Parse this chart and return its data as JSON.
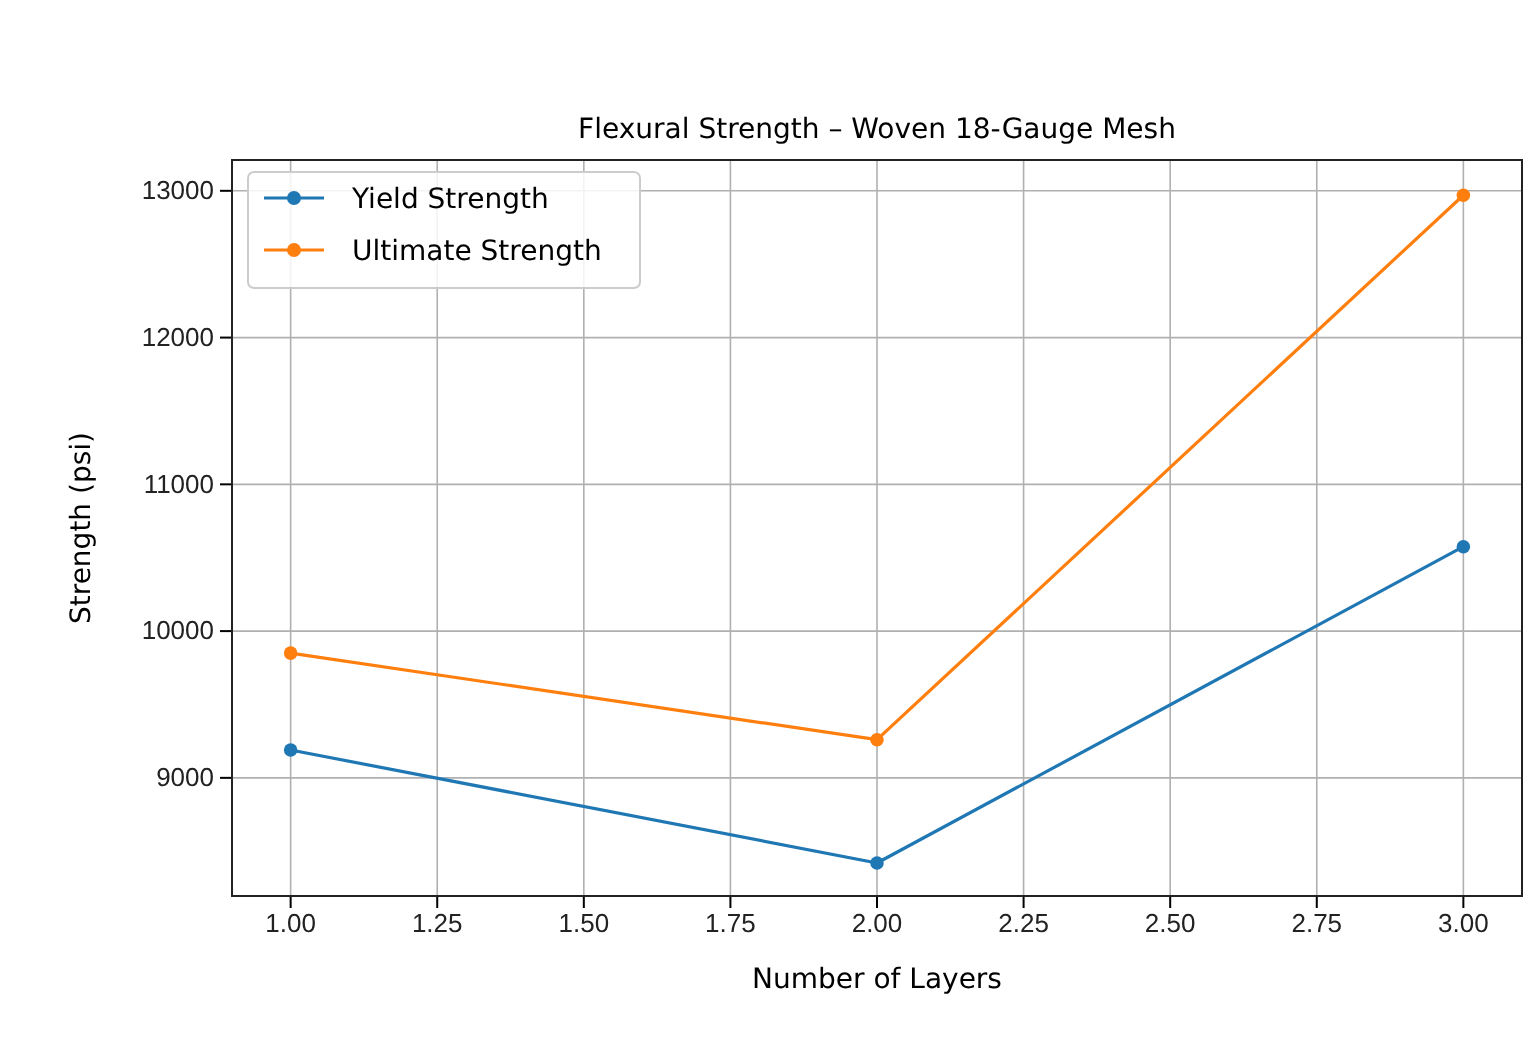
{
  "chart_data": {
    "type": "line",
    "title": "Flexural Strength – Woven 18-Gauge Mesh",
    "xlabel": "Number of Layers",
    "ylabel": "Strength (psi)",
    "x": [
      1,
      2,
      3
    ],
    "series": [
      {
        "name": "Yield Strength",
        "color": "#1f77b4",
        "values": [
          9190,
          8420,
          10575
        ]
      },
      {
        "name": "Ultimate Strength",
        "color": "#ff7f0e",
        "values": [
          9850,
          9260,
          12970
        ]
      }
    ],
    "xlim": [
      0.9,
      3.1
    ],
    "xticks": [
      {
        "value": 1,
        "label": "1.00"
      },
      {
        "value": 1.25,
        "label": "1.25"
      },
      {
        "value": 1.5,
        "label": "1.50"
      },
      {
        "value": 1.75,
        "label": "1.75"
      },
      {
        "value": 2,
        "label": "2.00"
      },
      {
        "value": 2.25,
        "label": "2.25"
      },
      {
        "value": 2.5,
        "label": "2.50"
      },
      {
        "value": 2.75,
        "label": "2.75"
      },
      {
        "value": 3,
        "label": "3.00"
      }
    ],
    "ylim": [
      8195,
      13210
    ],
    "yticks": [
      9000,
      10000,
      11000,
      12000,
      13000
    ],
    "grid": true,
    "legend": "top left",
    "marker": "circle",
    "line_style": "solid"
  }
}
